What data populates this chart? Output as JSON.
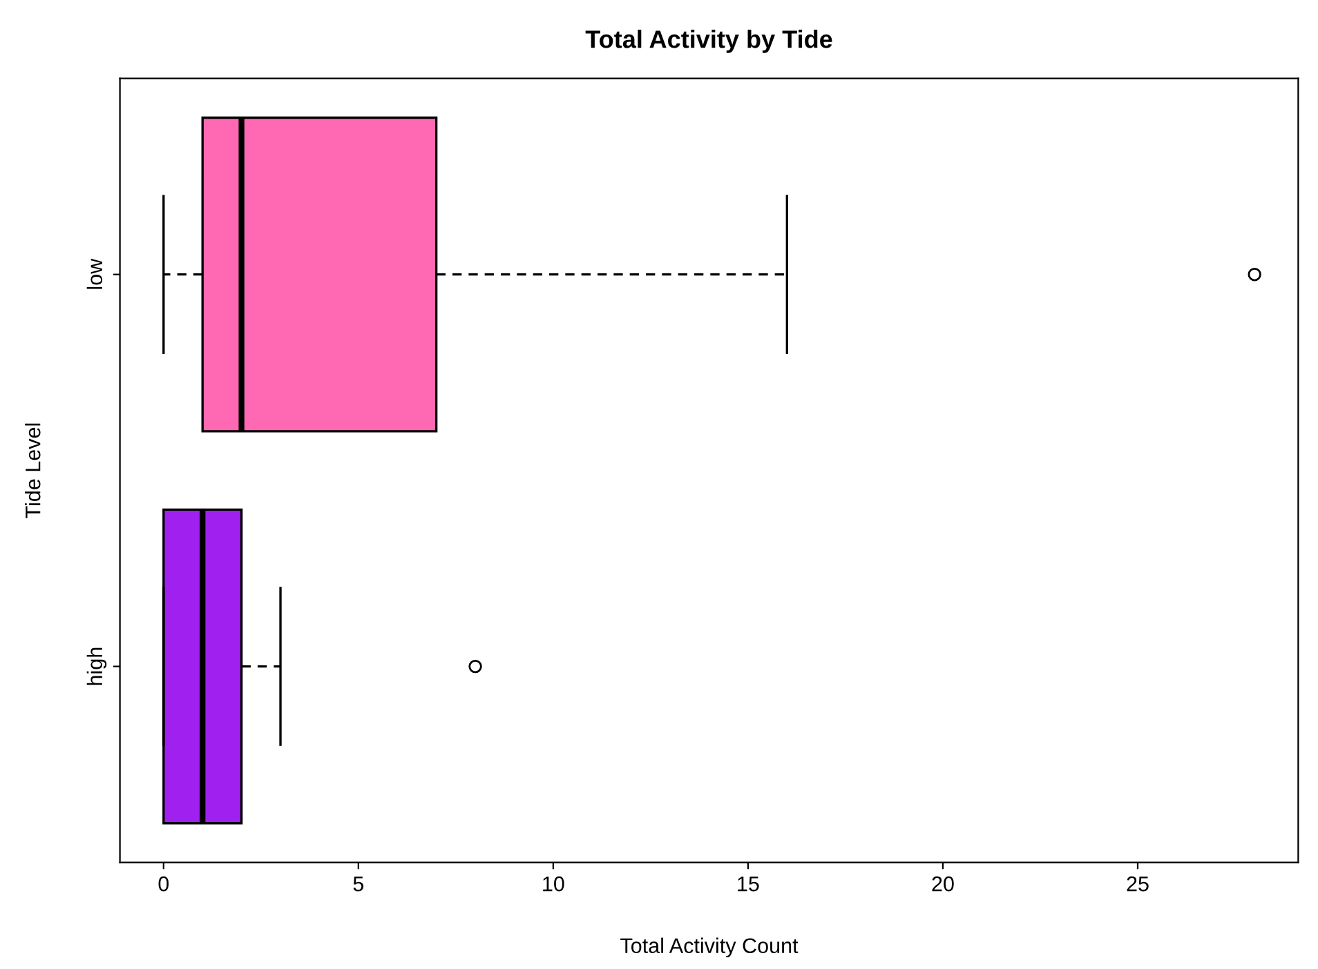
{
  "chart_data": {
    "type": "box",
    "title": "Total Activity by Tide",
    "xlabel": "Total Activity Count",
    "ylabel": "Tide Level",
    "orientation": "horizontal",
    "categories": [
      "low",
      "high"
    ],
    "boxes": [
      {
        "low": 0,
        "q1": 1,
        "median": 2,
        "q3": 7,
        "high": 16,
        "outliers": [
          28
        ]
      },
      {
        "low": 0,
        "q1": 0,
        "median": 1,
        "q3": 2,
        "high": 3,
        "outliers": [
          8
        ]
      }
    ],
    "colors": [
      "#ff69b4",
      "#a020f0"
    ],
    "xlim": [
      -1.12,
      29.12
    ],
    "xticks": [
      0,
      5,
      10,
      15,
      20,
      25
    ],
    "grid": false,
    "legend": false
  }
}
